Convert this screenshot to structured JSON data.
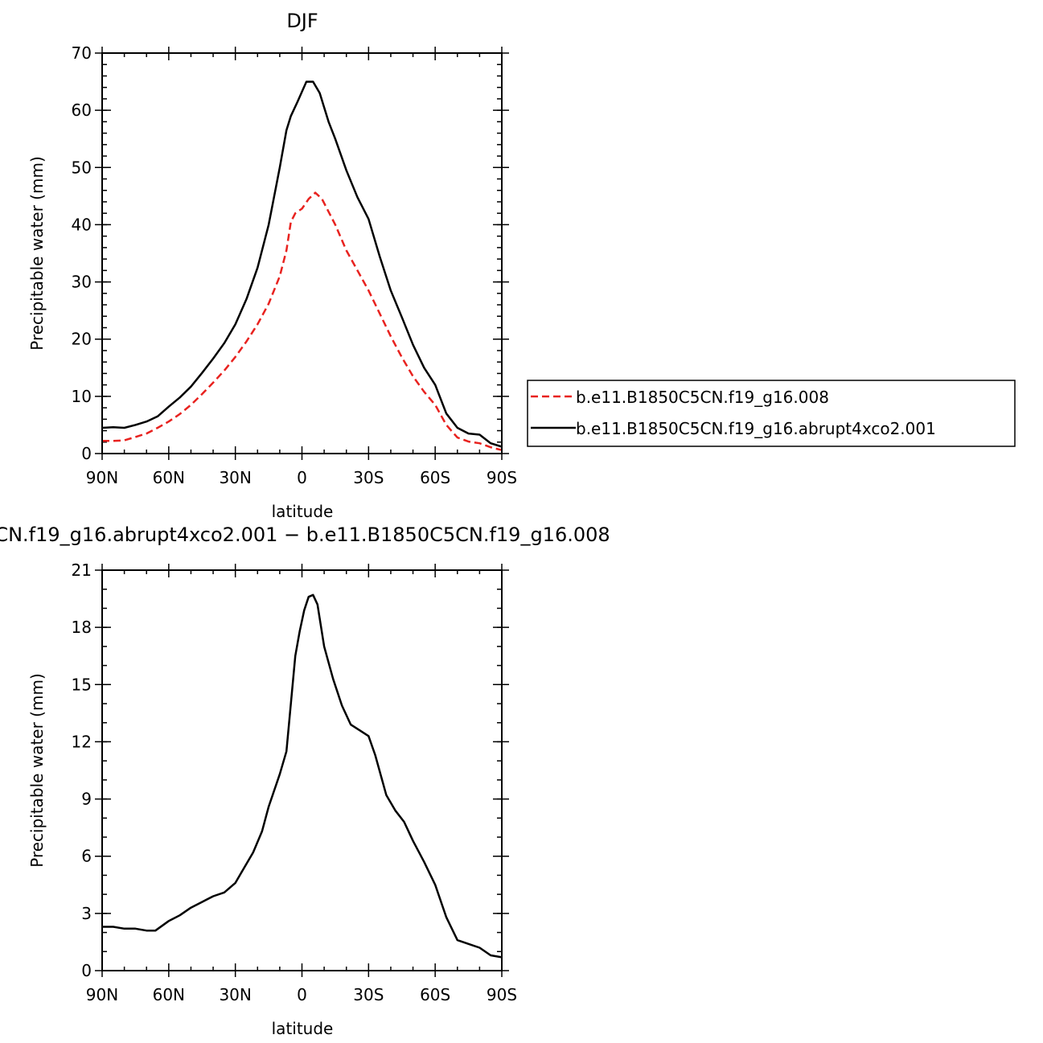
{
  "chart_data": [
    {
      "type": "line",
      "title": "DJF",
      "xlabel": "latitude",
      "ylabel": "Precipitable water (mm)",
      "xlim": [
        90,
        -90
      ],
      "ylim": [
        0,
        70
      ],
      "x_unit": "degrees latitude (north positive)",
      "xticks": [
        {
          "value": 90,
          "label": "90N"
        },
        {
          "value": 60,
          "label": "60N"
        },
        {
          "value": 30,
          "label": "30N"
        },
        {
          "value": 0,
          "label": "0"
        },
        {
          "value": -30,
          "label": "30S"
        },
        {
          "value": -60,
          "label": "60S"
        },
        {
          "value": -90,
          "label": "90S"
        }
      ],
      "yticks": [
        0,
        10,
        20,
        30,
        40,
        50,
        60,
        70
      ],
      "legend_position": "right, outside plot",
      "series": [
        {
          "name": "b.e11.B1850C5CN.f19_g16.008",
          "color": "#e8221f",
          "dash": "dashed",
          "points": [
            [
              90,
              2.2
            ],
            [
              85,
              2.2
            ],
            [
              80,
              2.3
            ],
            [
              75,
              2.9
            ],
            [
              70,
              3.5
            ],
            [
              65,
              4.5
            ],
            [
              60,
              5.6
            ],
            [
              55,
              6.9
            ],
            [
              50,
              8.5
            ],
            [
              45,
              10.4
            ],
            [
              40,
              12.4
            ],
            [
              35,
              14.5
            ],
            [
              30,
              16.9
            ],
            [
              25,
              19.6
            ],
            [
              20,
              22.6
            ],
            [
              15,
              26.2
            ],
            [
              10,
              31.0
            ],
            [
              7,
              35.5
            ],
            [
              5,
              40.5
            ],
            [
              3,
              42.0
            ],
            [
              0,
              42.8
            ],
            [
              -3,
              44.5
            ],
            [
              -6,
              45.6
            ],
            [
              -9,
              44.5
            ],
            [
              -15,
              40.0
            ],
            [
              -20,
              35.5
            ],
            [
              -25,
              32.0
            ],
            [
              -30,
              28.5
            ],
            [
              -35,
              24.5
            ],
            [
              -40,
              20.5
            ],
            [
              -45,
              16.8
            ],
            [
              -50,
              13.5
            ],
            [
              -55,
              10.8
            ],
            [
              -60,
              8.5
            ],
            [
              -65,
              5.0
            ],
            [
              -70,
              2.8
            ],
            [
              -75,
              2.1
            ],
            [
              -80,
              1.8
            ],
            [
              -85,
              1.1
            ],
            [
              -90,
              0.6
            ]
          ]
        },
        {
          "name": "b.e11.B1850C5CN.f19_g16.abrupt4xco2.001",
          "color": "#000000",
          "dash": "solid",
          "points": [
            [
              90,
              4.5
            ],
            [
              85,
              4.6
            ],
            [
              80,
              4.5
            ],
            [
              75,
              5.0
            ],
            [
              70,
              5.6
            ],
            [
              65,
              6.5
            ],
            [
              60,
              8.2
            ],
            [
              55,
              9.8
            ],
            [
              50,
              11.7
            ],
            [
              45,
              14.1
            ],
            [
              40,
              16.6
            ],
            [
              35,
              19.3
            ],
            [
              30,
              22.6
            ],
            [
              25,
              27.0
            ],
            [
              20,
              32.5
            ],
            [
              15,
              40.0
            ],
            [
              10,
              50.0
            ],
            [
              7,
              56.5
            ],
            [
              5,
              59.0
            ],
            [
              2,
              61.5
            ],
            [
              -2,
              65.0
            ],
            [
              -5,
              65.0
            ],
            [
              -8,
              63.0
            ],
            [
              -12,
              58.0
            ],
            [
              -15,
              55.0
            ],
            [
              -20,
              49.5
            ],
            [
              -25,
              44.8
            ],
            [
              -30,
              41.0
            ],
            [
              -35,
              34.5
            ],
            [
              -40,
              28.5
            ],
            [
              -45,
              23.8
            ],
            [
              -50,
              19.0
            ],
            [
              -55,
              15.0
            ],
            [
              -60,
              12.0
            ],
            [
              -65,
              7.0
            ],
            [
              -70,
              4.5
            ],
            [
              -75,
              3.5
            ],
            [
              -80,
              3.3
            ],
            [
              -85,
              1.8
            ],
            [
              -90,
              1.2
            ]
          ]
        }
      ]
    },
    {
      "type": "line",
      "title": "CN.f19_g16.abrupt4xco2.001 − b.e11.B1850C5CN.f19_g16.008",
      "xlabel": "latitude",
      "ylabel": "Precipitable water (mm)",
      "xlim": [
        90,
        -90
      ],
      "ylim": [
        0,
        21
      ],
      "xticks": [
        {
          "value": 90,
          "label": "90N"
        },
        {
          "value": 60,
          "label": "60N"
        },
        {
          "value": 30,
          "label": "30N"
        },
        {
          "value": 0,
          "label": "0"
        },
        {
          "value": -30,
          "label": "30S"
        },
        {
          "value": -60,
          "label": "60S"
        },
        {
          "value": -90,
          "label": "90S"
        }
      ],
      "yticks": [
        0,
        3,
        6,
        9,
        12,
        15,
        18,
        21
      ],
      "series": [
        {
          "color": "#000000",
          "dash": "solid",
          "points": [
            [
              90,
              2.3
            ],
            [
              85,
              2.3
            ],
            [
              80,
              2.2
            ],
            [
              75,
              2.2
            ],
            [
              70,
              2.1
            ],
            [
              66,
              2.1
            ],
            [
              60,
              2.6
            ],
            [
              55,
              2.9
            ],
            [
              50,
              3.3
            ],
            [
              45,
              3.6
            ],
            [
              40,
              3.9
            ],
            [
              35,
              4.1
            ],
            [
              30,
              4.6
            ],
            [
              27,
              5.2
            ],
            [
              22,
              6.2
            ],
            [
              18,
              7.3
            ],
            [
              15,
              8.6
            ],
            [
              10,
              10.3
            ],
            [
              7,
              11.5
            ],
            [
              5,
              14.0
            ],
            [
              3,
              16.5
            ],
            [
              1,
              17.8
            ],
            [
              -1,
              18.9
            ],
            [
              -3,
              19.6
            ],
            [
              -5,
              19.7
            ],
            [
              -7,
              19.2
            ],
            [
              -10,
              17.0
            ],
            [
              -14,
              15.3
            ],
            [
              -18,
              13.9
            ],
            [
              -22,
              12.9
            ],
            [
              -26,
              12.6
            ],
            [
              -30,
              12.3
            ],
            [
              -33,
              11.3
            ],
            [
              -38,
              9.2
            ],
            [
              -42,
              8.4
            ],
            [
              -46,
              7.8
            ],
            [
              -50,
              6.8
            ],
            [
              -55,
              5.7
            ],
            [
              -60,
              4.5
            ],
            [
              -65,
              2.8
            ],
            [
              -70,
              1.6
            ],
            [
              -75,
              1.4
            ],
            [
              -80,
              1.2
            ],
            [
              -85,
              0.8
            ],
            [
              -90,
              0.7
            ]
          ]
        }
      ]
    }
  ]
}
